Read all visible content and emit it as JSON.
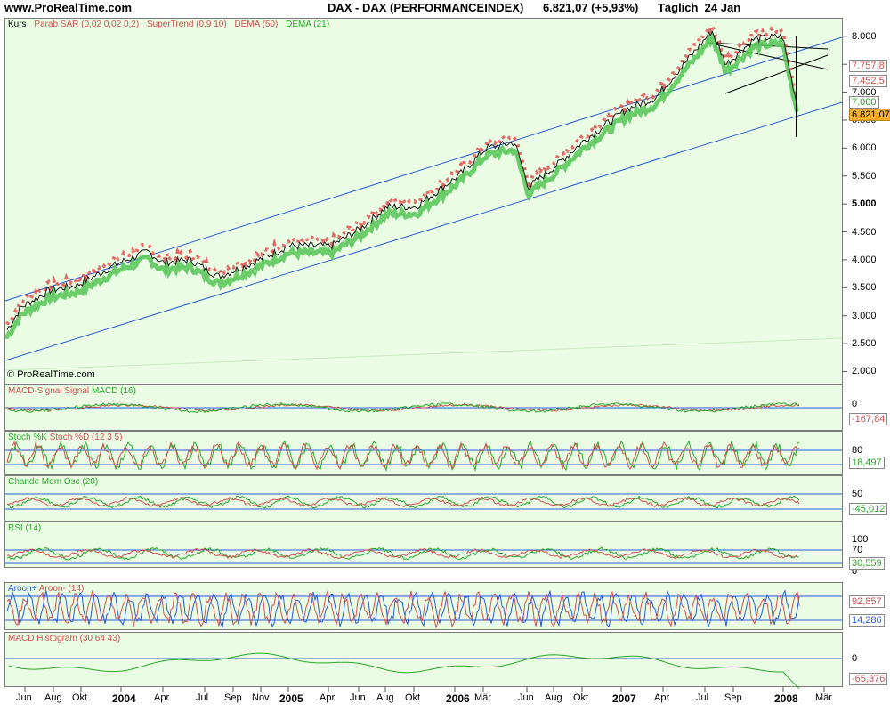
{
  "header": {
    "site": "www.ProRealTime.com",
    "title": "DAX - DAX (PERFORMANCEINDEX)      6.821,07 (+5,93%)      Täglich  24 Jan"
  },
  "watermark": "© ProRealTime.com",
  "colors": {
    "up": "#5cc85c",
    "down": "#e05a5a",
    "panel_bg": "#eafde4",
    "trend": "#2a5bd7"
  },
  "panels": {
    "price": {
      "label": "Kurs",
      "indicators": [
        "Parab SAR (0,02 0,02 0,2)",
        "SuperTrend (0,9 10)",
        "DEMA (50)",
        "DEMA (21)"
      ],
      "ticks": [
        "8.000",
        "7.500",
        "7.000",
        "6.500",
        "6.000",
        "5.500",
        "5.000",
        "4.500",
        "4.000",
        "3.500",
        "3.000",
        "2.500",
        "2.000"
      ],
      "tags": [
        "7.757,8",
        "7.452,5",
        "7.060",
        "6.821,07"
      ]
    },
    "macd": {
      "label_a": "MACD-Signal Signal",
      "label_b": "MACD (16)",
      "tick": "0",
      "value": "-167,84"
    },
    "stoch": {
      "label_a": "Stoch %K",
      "label_b": "Stoch %D (12 3 5)",
      "tick": "80",
      "value": "18,497"
    },
    "cmo": {
      "label": "Chande Mom Osc (20)",
      "tick": "50",
      "value": "-45,012"
    },
    "rsi": {
      "label": "RSI (14)",
      "tick_a": "100",
      "tick_b": "70",
      "tick_c": "0",
      "value": "30,559"
    },
    "aroon": {
      "label_a": "Aroon+",
      "label_b": "Aroon- (14)",
      "value_a": "92,857",
      "value_b": "14,286"
    },
    "hist": {
      "label": "MACD Histogram (30 64 43)",
      "tick": "0",
      "value": "-65,376"
    }
  },
  "x_axis": [
    "Jun",
    "Aug",
    "Okt",
    "2004",
    "Apr",
    "Jul",
    "Sep",
    "Nov",
    "2005",
    "Apr",
    "Jun",
    "Aug",
    "Okt",
    "2006",
    "Mär",
    "Jun",
    "Aug",
    "Okt",
    "2007",
    "Apr",
    "Jul",
    "Sep",
    "2008",
    "Mär"
  ],
  "chart_data": {
    "type": "line",
    "title": "DAX - DAX (PERFORMANCEINDEX)",
    "x": [
      "2003-05",
      "2003-06",
      "2003-08",
      "2003-10",
      "2004-01",
      "2004-03",
      "2004-04",
      "2004-06",
      "2004-08",
      "2004-10",
      "2005-01",
      "2005-04",
      "2005-06",
      "2005-08",
      "2005-10",
      "2006-01",
      "2006-03",
      "2006-05",
      "2006-06",
      "2006-08",
      "2006-10",
      "2007-01",
      "2007-03",
      "2007-05",
      "2007-07",
      "2007-08",
      "2007-10",
      "2007-12",
      "2008-01"
    ],
    "series": [
      {
        "name": "Kurs",
        "values": [
          2750,
          3150,
          3450,
          3550,
          3950,
          4150,
          3950,
          4000,
          3700,
          3900,
          4250,
          4250,
          4550,
          4950,
          4950,
          5500,
          6000,
          6100,
          5300,
          5700,
          6150,
          6700,
          6900,
          7500,
          8100,
          7500,
          7950,
          8000,
          6821
        ]
      }
    ],
    "ylim": [
      1800,
      8300
    ],
    "last_value": 6821.07,
    "change_percent": 5.93
  }
}
